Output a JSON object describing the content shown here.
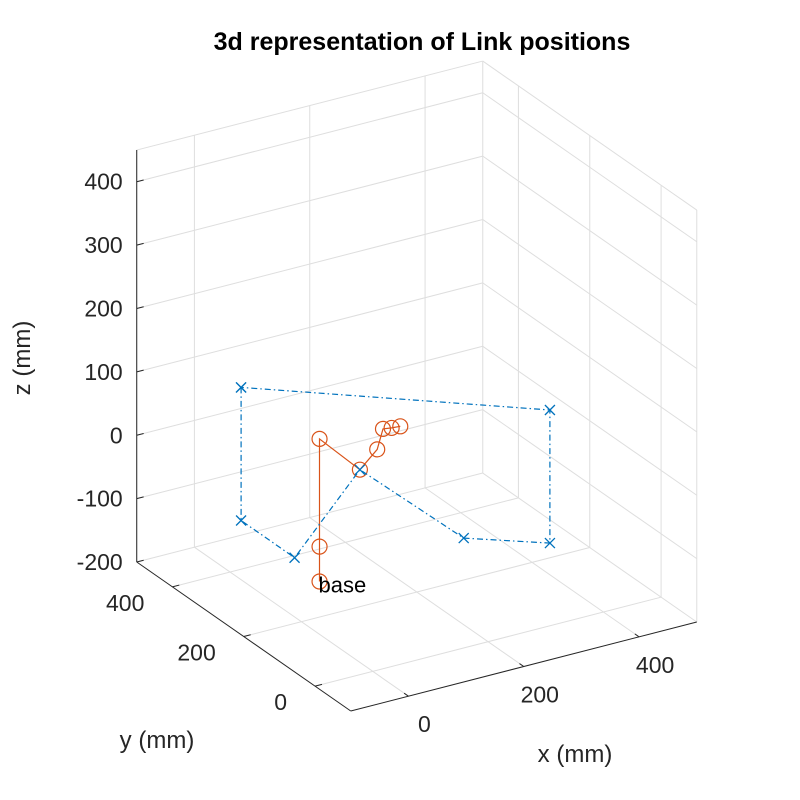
{
  "chart_data": {
    "type": "3d-line",
    "title": "3d representation of Link positions",
    "xlabel": "x (mm)",
    "ylabel": "y (mm)",
    "zlabel": "z (mm)",
    "xticks": [
      0,
      200,
      400
    ],
    "yticks": [
      0,
      200,
      400
    ],
    "zticks": [
      -200,
      -100,
      0,
      100,
      200,
      300,
      400
    ],
    "xlim": [
      -100,
      500
    ],
    "ylim": [
      -100,
      500
    ],
    "zlim": [
      -200,
      450
    ],
    "grid": true,
    "annotations": [
      {
        "text": "base",
        "x": 50,
        "y": 230,
        "z": -160
      }
    ],
    "series": [
      {
        "marker": "circle",
        "line": "solid",
        "color": "#D95319",
        "points": [
          {
            "x": 50,
            "y": 230,
            "z": -160
          },
          {
            "x": 50,
            "y": 230,
            "z": -105
          },
          {
            "x": 50,
            "y": 230,
            "z": 65
          },
          {
            "x": 120,
            "y": 230,
            "z": 0
          },
          {
            "x": 150,
            "y": 230,
            "z": 25
          },
          {
            "x": 160,
            "y": 230,
            "z": 55
          },
          {
            "x": 175,
            "y": 230,
            "z": 53
          },
          {
            "x": 190,
            "y": 230,
            "z": 52
          }
        ]
      },
      {
        "marker": "x",
        "line": "dash-dot",
        "color": "#0072BD",
        "points": [
          {
            "x": 50,
            "y": 450,
            "z": 60
          },
          {
            "x": 50,
            "y": 450,
            "z": -150
          },
          {
            "x": 50,
            "y": 300,
            "z": -150
          },
          {
            "x": 120,
            "y": 230,
            "z": 0
          },
          {
            "x": 300,
            "y": 230,
            "z": -150
          },
          {
            "x": 400,
            "y": 150,
            "z": -150
          },
          {
            "x": 400,
            "y": 150,
            "z": 60
          },
          {
            "x": 50,
            "y": 450,
            "z": 60
          }
        ]
      }
    ]
  }
}
